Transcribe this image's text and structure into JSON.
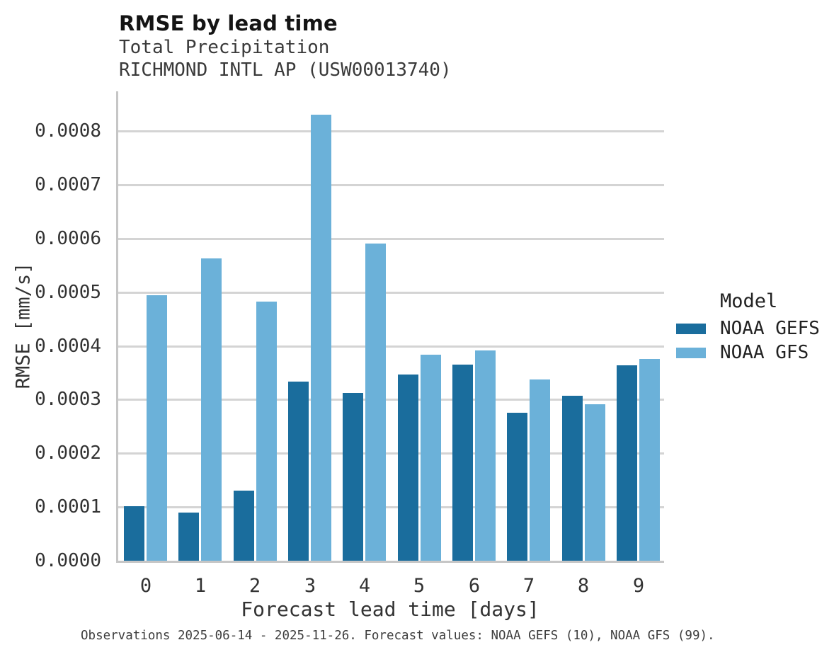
{
  "header": {
    "title": "RMSE by lead time",
    "subtitle_line1": "Total Precipitation",
    "subtitle_line2": "RICHMOND INTL AP (USW00013740)"
  },
  "caption": "Observations 2025-06-14 - 2025-11-26. Forecast values: NOAA GEFS (10), NOAA GFS (99).",
  "legend": {
    "title": "Model",
    "entries": [
      {
        "label": "NOAA GEFS",
        "color": "#1a6d9d"
      },
      {
        "label": "NOAA GFS",
        "color": "#6bb1d9"
      }
    ],
    "position": "right"
  },
  "colors": {
    "noaa_gefs": "#1a6d9d",
    "noaa_gfs": "#6bb1d9",
    "gridline": "#d4d4d4",
    "spine": "#c6c6c6",
    "text": "#333333"
  },
  "chart_data": {
    "type": "bar",
    "title": "RMSE by lead time",
    "subtitle": "Total Precipitation",
    "station": "RICHMOND INTL AP (USW00013740)",
    "categories": [
      "0",
      "1",
      "2",
      "3",
      "4",
      "5",
      "6",
      "7",
      "8",
      "9"
    ],
    "series": [
      {
        "name": "NOAA GEFS",
        "color": "#1a6d9d",
        "values": [
          0.000102,
          9e-05,
          0.00013,
          0.000333,
          0.000312,
          0.000347,
          0.000365,
          0.000276,
          0.000307,
          0.000364
        ]
      },
      {
        "name": "NOAA GFS",
        "color": "#6bb1d9",
        "values": [
          0.000494,
          0.000563,
          0.000483,
          0.00083,
          0.00059,
          0.000384,
          0.000391,
          0.000338,
          0.000291,
          0.000375
        ]
      }
    ],
    "xlabel": "Forecast lead time [days]",
    "ylabel": "RMSE [mm/s]",
    "ylim": [
      0.0,
      0.000874
    ],
    "ytick_step": 0.0001,
    "ytick_labels": [
      "0.0000",
      "0.0001",
      "0.0002",
      "0.0003",
      "0.0004",
      "0.0005",
      "0.0006",
      "0.0007",
      "0.0008"
    ],
    "grid": "horizontal",
    "legend_title": "Model",
    "legend_position": "right"
  }
}
